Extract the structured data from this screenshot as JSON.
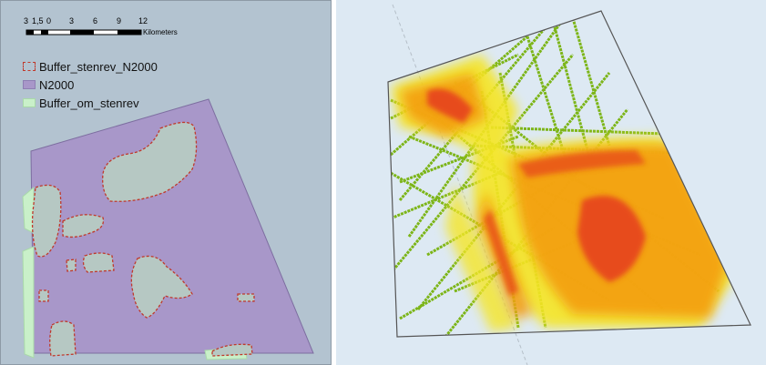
{
  "scalebar": {
    "ticks": [
      "3",
      "1,5",
      "0",
      "3",
      "6",
      "9",
      "12"
    ],
    "unit": "Kilometers"
  },
  "legend": {
    "items": [
      {
        "label": "Buffer_stenrev_N2000"
      },
      {
        "label": "N2000"
      },
      {
        "label": "Buffer_om_stenrev"
      }
    ]
  },
  "colors": {
    "left_background": "#b3c3d0",
    "n2000_fill": "#a897c9",
    "buffer_fill": "#b6c8c3",
    "buffer_outline": "#c0392b",
    "buffer_om_fill": "#c9f0c9",
    "right_background": "#dde9f3",
    "density_low": "#7cb518",
    "density_mid": "#f5e626",
    "density_high": "#f39c12",
    "density_max": "#e74c1c"
  }
}
